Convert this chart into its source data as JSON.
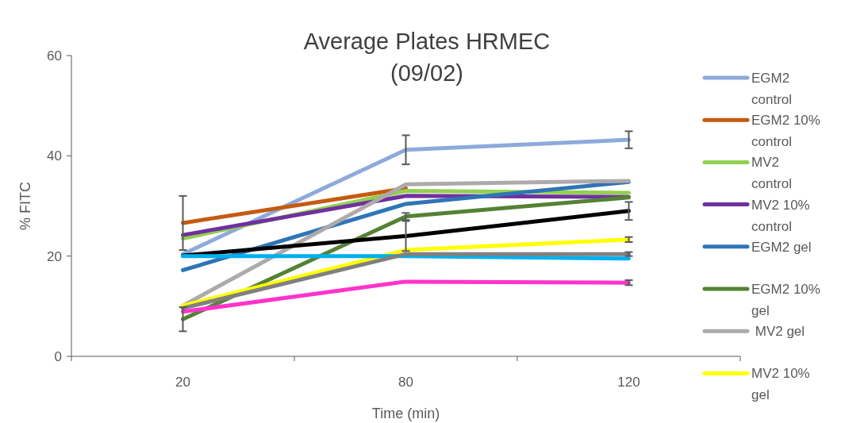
{
  "chart_data": {
    "type": "line",
    "title": "Average Plates HRMEC\n(09/02)",
    "xlabel": "Time (min)",
    "ylabel": "% FITC",
    "categories": [
      "20",
      "80",
      "120"
    ],
    "ylim": [
      0,
      60
    ],
    "yticks": [
      0,
      20,
      40,
      60
    ],
    "grid": false,
    "legend": "right",
    "marker": "none",
    "line_style": "solid",
    "series": [
      {
        "name": "EGM2 control",
        "color": "#8eaadb",
        "values": [
          20.4,
          41.2,
          43.2
        ],
        "errors": [
          null,
          2.9,
          1.7
        ]
      },
      {
        "name": "EGM2 10% control",
        "color": "#c55a11",
        "values": [
          26.6,
          33.5,
          null
        ],
        "errors": [
          5.4,
          null,
          null
        ]
      },
      {
        "name": "MV2 control",
        "color": "#92d050",
        "values": [
          23.5,
          33,
          32.6
        ]
      },
      {
        "name": "MV2 10% control",
        "color": "#7030a0",
        "values": [
          24.2,
          32,
          31.8
        ]
      },
      {
        "name": "EGM2 gel",
        "color": "#2e75b6",
        "values": [
          17.2,
          30.4,
          34.8
        ]
      },
      {
        "name": "EGM2 10% gel",
        "color": "#548235",
        "values": [
          7.4,
          27.9,
          31.7
        ],
        "errors": [
          2.4,
          0.7,
          null
        ]
      },
      {
        "name": " MV2 gel",
        "color": "#aeaaaa",
        "values": [
          10.1,
          34.3,
          35
        ]
      },
      {
        "name": "MV2 10% gel",
        "color": "#ffff00",
        "values": [
          10.1,
          21.2,
          23.3
        ],
        "errors": [
          null,
          null,
          0.5
        ]
      },
      {
        "color": "#000000",
        "values": [
          20.1,
          24,
          29
        ],
        "errors": [
          null,
          3,
          1.8
        ]
      },
      {
        "color": "#00b0f0",
        "values": [
          20,
          20,
          19.5
        ]
      },
      {
        "color": "#808080",
        "values": [
          9.6,
          20.4,
          20.4
        ],
        "errors": [
          null,
          null,
          0.4
        ]
      },
      {
        "color": "#ff33cc",
        "values": [
          8.9,
          14.9,
          14.7
        ],
        "errors": [
          null,
          null,
          0.5
        ]
      }
    ]
  }
}
